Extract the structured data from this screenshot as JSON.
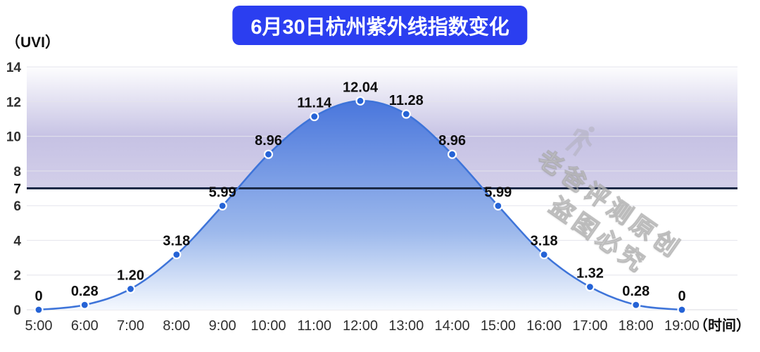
{
  "header": {
    "title": "6月30日杭州紫外线指数变化"
  },
  "axis": {
    "y_unit": "（UVI）",
    "x_unit": "（时间）"
  },
  "watermark": {
    "line1": "老爸评测原创",
    "line2": "盗图必究"
  },
  "colors": {
    "title_bg": "#2b3ef0",
    "line": "#3e74d9",
    "marker": "#2563d6",
    "marker_ring": "#ffffff",
    "band_top": "#fdfdfe",
    "band_mid": "#c6c2e4",
    "band_bottom": "#d3cfe9",
    "fill_top": "#3465d8",
    "fill_mid": "#9db9ec",
    "fill_bottom": "#f4f8fe",
    "threshold_line": "#1b2a47",
    "grid": "#e4e4ec",
    "tick_text": "#2f2f2f",
    "label_text": "#0d0d0d"
  },
  "chart_data": {
    "type": "area",
    "title": "6月30日杭州紫外线指数变化",
    "xlabel": "（时间）",
    "ylabel": "（UVI）",
    "x": [
      "5:00",
      "6:00",
      "7:00",
      "8:00",
      "9:00",
      "10:00",
      "11:00",
      "12:00",
      "13:00",
      "14:00",
      "15:00",
      "16:00",
      "17:00",
      "18:00",
      "19:00"
    ],
    "values": [
      0,
      0.28,
      1.2,
      3.18,
      5.99,
      8.96,
      11.14,
      12.04,
      11.28,
      8.96,
      5.99,
      3.18,
      1.32,
      0.28,
      0
    ],
    "labels": [
      "0",
      "0.28",
      "1.20",
      "3.18",
      "5.99",
      "8.96",
      "11.14",
      "12.04",
      "11.28",
      "8.96",
      "5.99",
      "3.18",
      "1.32",
      "0.28",
      "0"
    ],
    "ylim": [
      0,
      14
    ],
    "yticks": [
      0,
      2,
      4,
      6,
      7,
      8,
      10,
      12,
      14
    ],
    "highlight_band": [
      7,
      14
    ],
    "grid": true,
    "legend": "none"
  }
}
